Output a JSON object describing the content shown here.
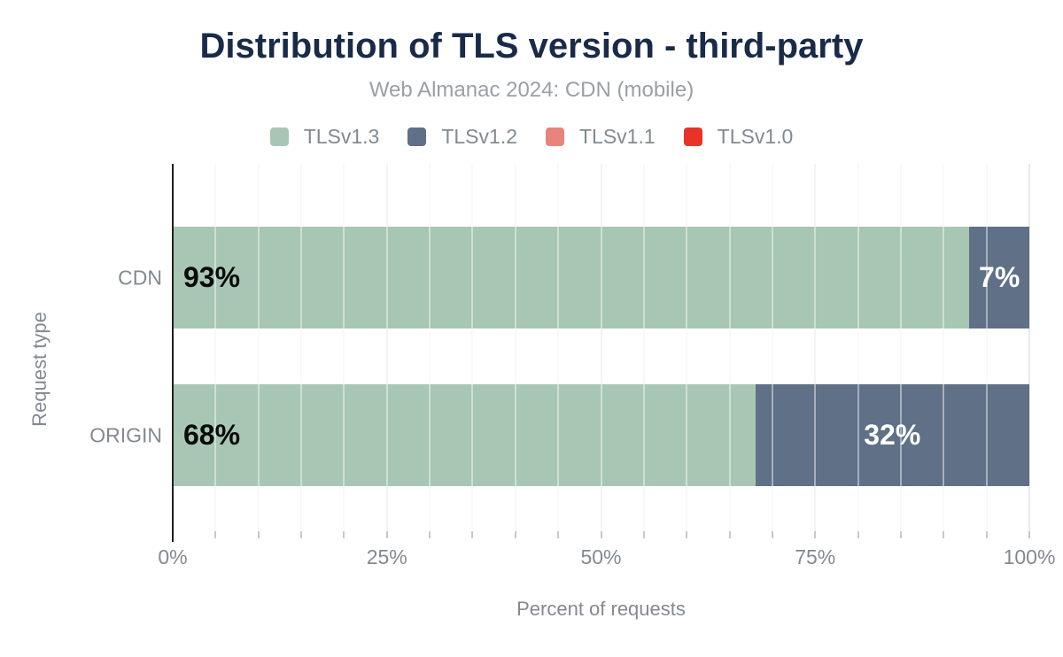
{
  "chart_data": {
    "type": "bar",
    "orientation": "horizontal",
    "stacked": true,
    "title": "Distribution of TLS version - third-party",
    "subtitle": "Web Almanac 2024: CDN (mobile)",
    "xlabel": "Percent of requests",
    "ylabel": "Request type",
    "categories": [
      "CDN",
      "ORIGIN"
    ],
    "series": [
      {
        "name": "TLSv1.3",
        "color": "#a7c7b4",
        "values": [
          93,
          68
        ]
      },
      {
        "name": "TLSv1.2",
        "color": "#5f7087",
        "values": [
          7,
          32
        ]
      },
      {
        "name": "TLSv1.1",
        "color": "#e8847b",
        "values": [
          0,
          0
        ]
      },
      {
        "name": "TLSv1.0",
        "color": "#e93327",
        "values": [
          0,
          0
        ]
      }
    ],
    "unit": "%",
    "xlim": [
      0,
      100
    ],
    "x_ticks": [
      {
        "value": 0,
        "label": "0%"
      },
      {
        "value": 25,
        "label": "25%"
      },
      {
        "value": 50,
        "label": "50%"
      },
      {
        "value": 75,
        "label": "75%"
      },
      {
        "value": 100,
        "label": "100%"
      }
    ],
    "minor_grid_step": 5,
    "grid": "vertical-only",
    "legend_position": "top-center",
    "data_labels": [
      [
        "93%",
        "7%"
      ],
      [
        "68%",
        "32%"
      ]
    ],
    "data_label_colors": {
      "on_first_segment": "#0a0a0a",
      "on_other_segments": "#ffffff"
    }
  },
  "colors": {
    "title": "#1a2b49",
    "subtitle": "#9aa0a4",
    "axis_text": "#828a90",
    "axis_line": "#202020",
    "grid_minor": "#f4f4f4",
    "grid_major": "#eaeaea"
  }
}
